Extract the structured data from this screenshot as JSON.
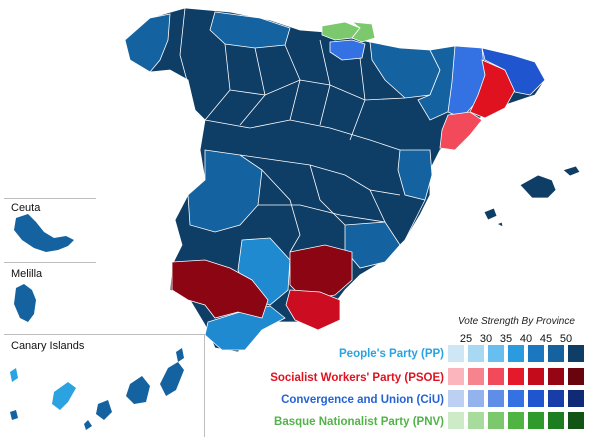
{
  "insets": {
    "ceuta": "Ceuta",
    "melilla": "Melilla",
    "canary": "Canary Islands"
  },
  "legend": {
    "title": "Vote Strength By Province",
    "scale": [
      "25",
      "30",
      "35",
      "40",
      "45",
      "50"
    ],
    "parties": [
      {
        "name": "People's Party (PP)",
        "color": "#2aa3e0",
        "shades": [
          "#cfe6f6",
          "#a9d8f2",
          "#66bfee",
          "#2b9be0",
          "#1b78c0",
          "#14629f",
          "#0e3d66"
        ]
      },
      {
        "name": "Socialist Workers' Party (PSOE)",
        "color": "#e0121f",
        "shades": [
          "#fbb6bd",
          "#f7838e",
          "#f24a5a",
          "#e4192a",
          "#c40b1c",
          "#960513",
          "#68040e"
        ]
      },
      {
        "name": "Convergence and Union (CiU)",
        "color": "#2563d6",
        "shades": [
          "#bcd0f4",
          "#93b3ee",
          "#5f8ee8",
          "#3472e3",
          "#1f55cf",
          "#173ea8",
          "#102a77"
        ]
      },
      {
        "name": "Basque Nationalist Party (PNV)",
        "color": "#52b348",
        "shades": [
          "#cdebc6",
          "#a8dc9c",
          "#7cc96d",
          "#4fb442",
          "#2e9b2c",
          "#1d7d21",
          "#125416"
        ]
      }
    ]
  },
  "colors": {
    "pp_strong": "#0e3d66",
    "pp_mid": "#14629f",
    "pp_light": "#1f8ad0",
    "psoe_strong": "#8c0512",
    "psoe_mid": "#cc0d21",
    "ciu_strong": "#1f55cf",
    "ciu_light": "#3472e3",
    "pnv": "#7cc96d",
    "border": "#ffffff"
  }
}
